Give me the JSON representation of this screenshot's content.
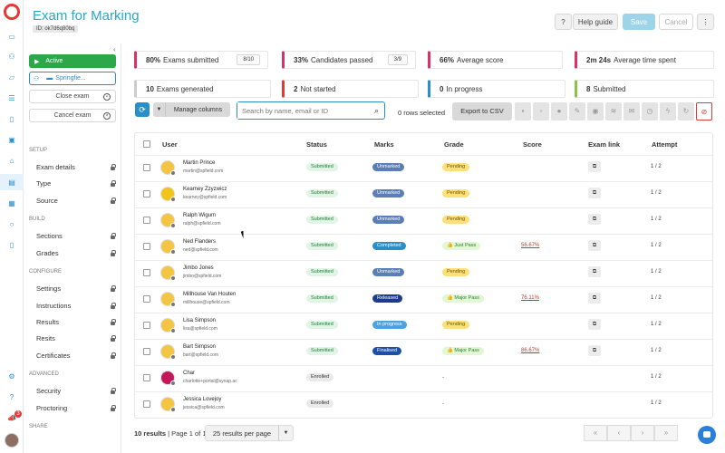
{
  "header": {
    "title": "Exam for Marking",
    "id_tag": "ID: ok7d6q80bq",
    "help_icon": "?",
    "help_label": "Help guide",
    "save_label": "Save",
    "cancel_label": "Cancel",
    "more_icon": "⋮"
  },
  "panel": {
    "status_label": "Active",
    "school_label": "Springfie...",
    "close_label": "Close exam",
    "cancel_exam_label": "Cancel exam",
    "sections": [
      {
        "title": "Setup",
        "items": [
          "Exam details",
          "Type",
          "Source"
        ]
      },
      {
        "title": "Build",
        "items": [
          "Sections",
          "Grades"
        ]
      },
      {
        "title": "Configure",
        "items": [
          "Settings",
          "Instructions",
          "Results",
          "Resits",
          "Certificates"
        ]
      },
      {
        "title": "Advanced",
        "items": [
          "Security",
          "Proctoring"
        ]
      },
      {
        "title": "Share",
        "items": []
      }
    ]
  },
  "stats": [
    {
      "value": "80%",
      "label": "Exams submitted",
      "fraction": "8/10",
      "color": "#d6336c"
    },
    {
      "value": "33%",
      "label": "Candidates passed",
      "fraction": "3/9",
      "color": "#d6336c"
    },
    {
      "value": "66%",
      "label": "Average score",
      "fraction": "",
      "color": "#d6336c"
    },
    {
      "value": "2m 24s",
      "label": "Average time spent",
      "fraction": "",
      "color": "#d6336c"
    },
    {
      "value": "10",
      "label": "Exams generated",
      "fraction": "",
      "color": "#cccccc"
    },
    {
      "value": "2",
      "label": "Not started",
      "fraction": "",
      "color": "#e53935"
    },
    {
      "value": "0",
      "label": "In progress",
      "fraction": "",
      "color": "#2a8fc8"
    },
    {
      "value": "8",
      "label": "Submitted",
      "fraction": "",
      "color": "#8bc34a"
    }
  ],
  "toolbar": {
    "manage_label": "Manage columns",
    "search_placeholder": "Search by name, email or ID",
    "rows_selected": "0 rows selected",
    "export_label": "Export to CSV"
  },
  "table": {
    "headers": [
      "User",
      "Status",
      "Marks",
      "Grade",
      "Score",
      "Exam link",
      "Attempt"
    ],
    "rows": [
      {
        "name": "Martin Prince",
        "email": "martin@spfield.com",
        "status": "Submitted",
        "marks": "Unmarked",
        "grade": "Pending",
        "score": "",
        "attempt": "1 / 2",
        "avatar": "#f4c542"
      },
      {
        "name": "Kearney Zzyzwicz",
        "email": "kearney@spfield.com",
        "status": "Submitted",
        "marks": "Unmarked",
        "grade": "Pending",
        "score": "",
        "attempt": "1 / 2",
        "avatar": "#f0c419"
      },
      {
        "name": "Ralph Wigum",
        "email": "ralph@spfield.com",
        "status": "Submitted",
        "marks": "Unmarked",
        "grade": "Pending",
        "score": "",
        "attempt": "1 / 2",
        "avatar": "#f4c542"
      },
      {
        "name": "Ned Flanders",
        "email": "ned@spfield.com",
        "status": "Submitted",
        "marks": "Completed",
        "grade": "👍 Just Pass",
        "score": "56.67%",
        "attempt": "1 / 2",
        "avatar": "#f4c542"
      },
      {
        "name": "Jimbo Jones",
        "email": "jimbo@spfield.com",
        "status": "Submitted",
        "marks": "Unmarked",
        "grade": "Pending",
        "score": "",
        "attempt": "1 / 2",
        "avatar": "#f4c542"
      },
      {
        "name": "Millhouse Van Houten",
        "email": "millhouse@spfield.com",
        "status": "Submitted",
        "marks": "Released",
        "grade": "👍 Major Pass",
        "score": "76.11%",
        "attempt": "1 / 2",
        "avatar": "#f4c542"
      },
      {
        "name": "Lisa Simpson",
        "email": "lisa@spfield.com",
        "status": "Submitted",
        "marks": "In progress",
        "grade": "Pending",
        "score": "",
        "attempt": "1 / 2",
        "avatar": "#f4c542"
      },
      {
        "name": "Bart Simpson",
        "email": "bart@spfield.com",
        "status": "Submitted",
        "marks": "Finalised",
        "grade": "👍 Major Pass",
        "score": "86.67%",
        "attempt": "1 / 2",
        "avatar": "#f4c542"
      },
      {
        "name": "Char",
        "email": "charlotte+portal@synap.ac",
        "status": "Enrolled",
        "marks": "",
        "grade": "-",
        "score": "",
        "attempt": "1 / 2",
        "avatar": "#c2185b"
      },
      {
        "name": "Jessica Lovejoy",
        "email": "jessica@spfield.com",
        "status": "Enrolled",
        "marks": "",
        "grade": "-",
        "score": "",
        "attempt": "1 / 2",
        "avatar": "#f4c542"
      }
    ]
  },
  "footer": {
    "results_bold": "10 results",
    "results_rest": " | Page 1 of 1",
    "per_page": "25 results per page",
    "pager": [
      "«",
      "‹",
      "›",
      "»"
    ]
  },
  "colors": {
    "accent": "#2a8fc8",
    "active_green": "#2ca84a",
    "title": "#2aa7c4",
    "danger": "#e53935"
  }
}
